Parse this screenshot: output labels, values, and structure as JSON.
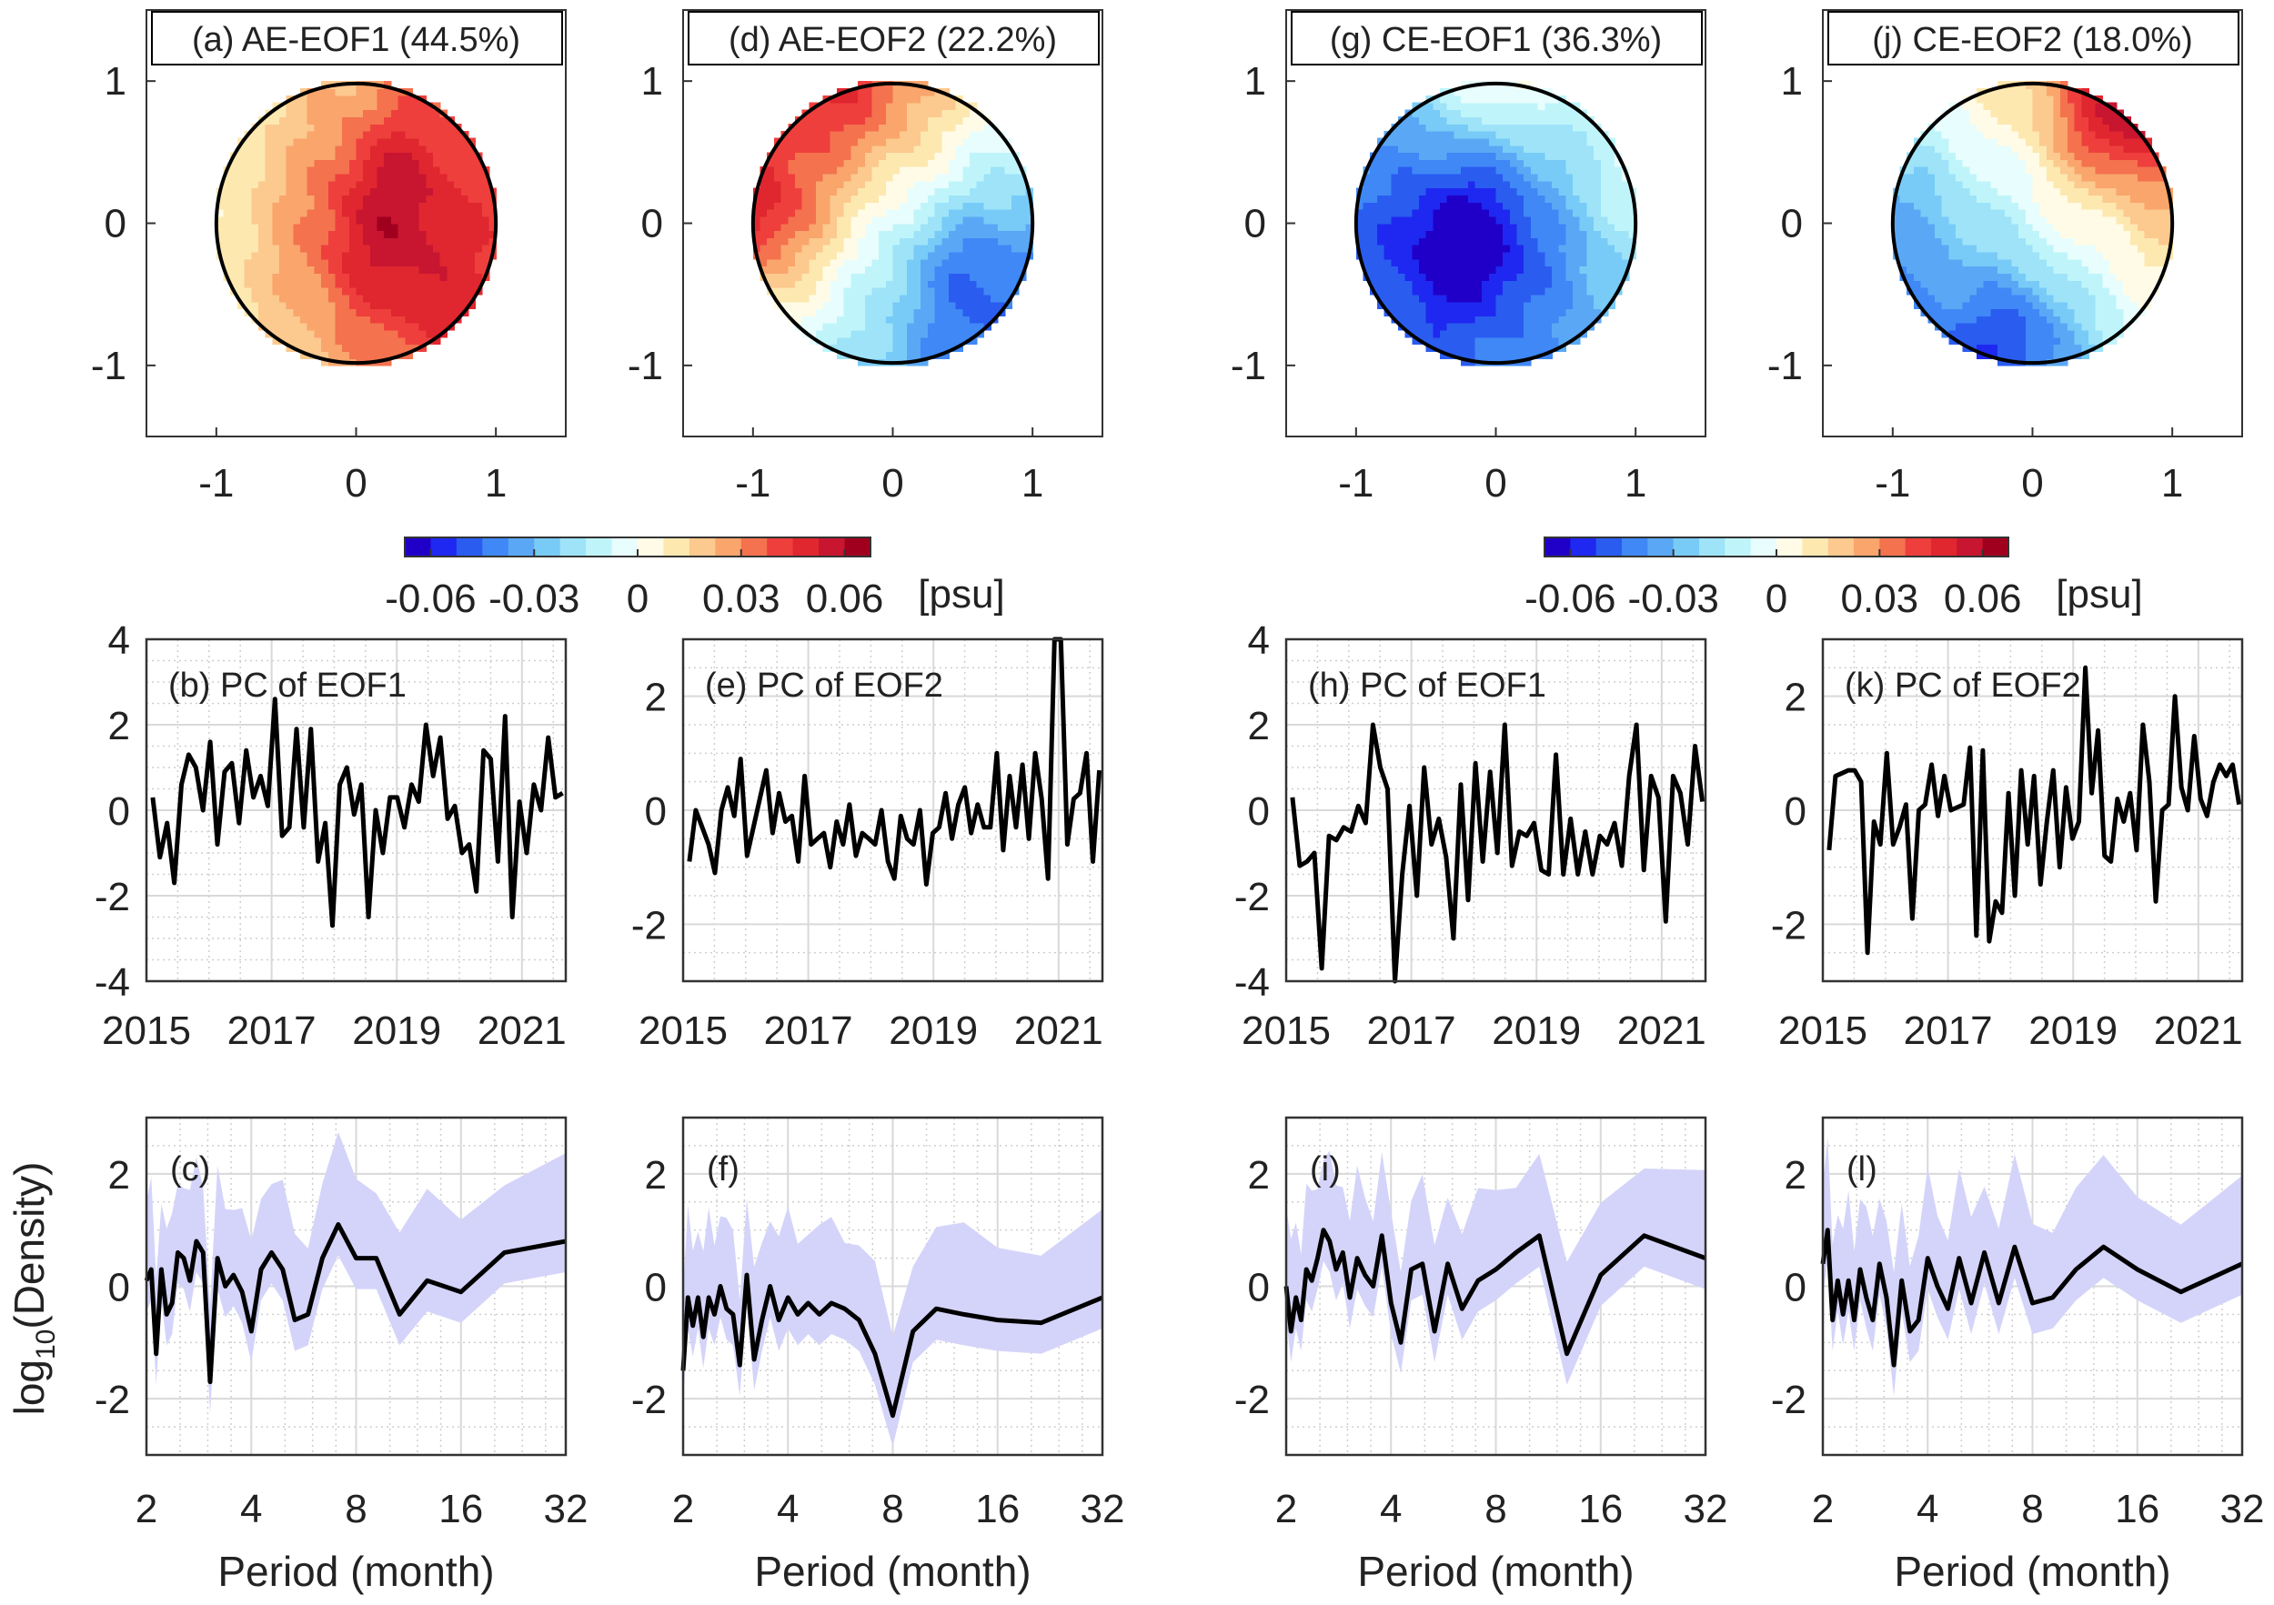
{
  "chart_data": {
    "type": "multi-panel",
    "maps": [
      {
        "title": "(a) AE-EOF1 (44.5%)",
        "xlim": [
          -1.5,
          1.5
        ],
        "ylim": [
          -1.5,
          1.5
        ],
        "xticks": [
          "-1",
          "0",
          "1"
        ],
        "yticks": [
          "1",
          "0",
          "-1"
        ],
        "field": {
          "base": 0.022,
          "gx": 0.013,
          "gy": 0.0,
          "blobs": [
            [
              0.2,
              -0.1,
              0.03,
              0.45
            ],
            [
              0.3,
              0.5,
              0.012,
              0.3
            ],
            [
              0.6,
              -0.7,
              0.008,
              0.3
            ]
          ]
        }
      },
      {
        "title": "(d) AE-EOF2 (22.2%)",
        "xlim": [
          -1.5,
          1.5
        ],
        "ylim": [
          -1.5,
          1.5
        ],
        "xticks": [
          "-1",
          "0",
          "1"
        ],
        "yticks": [
          "1",
          "0",
          "-1"
        ],
        "field": {
          "base": 0.0,
          "gx": -0.028,
          "gy": 0.028,
          "blobs": [
            [
              -0.95,
              0.05,
              0.022,
              0.3
            ],
            [
              0.45,
              -0.3,
              -0.02,
              0.35
            ],
            [
              -0.2,
              0.8,
              0.01,
              0.3
            ]
          ]
        }
      },
      {
        "title": "(g) CE-EOF1 (36.3%)",
        "xlim": [
          -1.5,
          1.5
        ],
        "ylim": [
          -1.5,
          1.5
        ],
        "xticks": [
          "-1",
          "0",
          "1"
        ],
        "yticks": [
          "1",
          "0",
          "-1"
        ],
        "field": {
          "base": -0.028,
          "gx": 0.008,
          "gy": 0.01,
          "blobs": [
            [
              -0.2,
              -0.1,
              -0.038,
              0.45
            ],
            [
              0.0,
              1.0,
              0.022,
              0.28
            ],
            [
              0.9,
              0.3,
              0.01,
              0.3
            ]
          ]
        }
      },
      {
        "title": "(j) CE-EOF2 (18.0%)",
        "xlim": [
          -1.5,
          1.5
        ],
        "ylim": [
          -1.5,
          1.5
        ],
        "xticks": [
          "-1",
          "0",
          "1"
        ],
        "yticks": [
          "1",
          "0",
          "-1"
        ],
        "field": {
          "base": -0.006,
          "gx": 0.024,
          "gy": 0.024,
          "blobs": [
            [
              0.6,
              0.7,
              0.03,
              0.3
            ],
            [
              -0.1,
              -0.75,
              -0.022,
              0.3
            ],
            [
              -0.7,
              0.1,
              -0.006,
              0.3
            ]
          ]
        }
      }
    ],
    "colorbars": [
      {
        "ticks": [
          "-0.06",
          "-0.03",
          "0",
          "0.03",
          "0.06"
        ],
        "tick_values": [
          -0.06,
          -0.03,
          0,
          0.03,
          0.06
        ],
        "range": [
          -0.0675,
          0.0675
        ],
        "unit": "[psu]"
      },
      {
        "ticks": [
          "-0.06",
          "-0.03",
          "0",
          "0.03",
          "0.06"
        ],
        "tick_values": [
          -0.06,
          -0.03,
          0,
          0.03,
          0.06
        ],
        "range": [
          -0.0675,
          0.0675
        ],
        "unit": "[psu]"
      }
    ],
    "colormap": [
      "#2000c8",
      "#1e28f0",
      "#2a5cf0",
      "#3f88f6",
      "#5aa8f5",
      "#78cbf7",
      "#9ee3f8",
      "#bff5fa",
      "#e8fdfd",
      "#fffbe6",
      "#fde8b0",
      "#fcc98e",
      "#f9a56c",
      "#f4724e",
      "#ee3f3d",
      "#e0262f",
      "#c81530",
      "#a0001e"
    ],
    "pcs": [
      {
        "label": "(b) PC of EOF1",
        "ylim": [
          -4,
          4
        ],
        "yticks": [
          4,
          2,
          0,
          -2,
          -4
        ],
        "ytick_labels": [
          "4",
          "2",
          "0",
          "-2",
          "-4"
        ],
        "xlim": [
          2015,
          2021.7
        ],
        "xticks": [
          2015,
          2017,
          2019,
          2021
        ],
        "xtick_labels": [
          "2015",
          "2017",
          "2019",
          "2021"
        ],
        "t_start": 2015.1,
        "t_end": 2021.65,
        "values": [
          0.3,
          -1.1,
          -0.3,
          -1.7,
          0.6,
          1.3,
          1.0,
          0.0,
          1.6,
          -0.8,
          0.9,
          1.1,
          -0.3,
          1.4,
          0.3,
          0.8,
          0.1,
          2.6,
          -0.6,
          -0.4,
          1.9,
          -0.4,
          1.9,
          -1.2,
          -0.3,
          -2.7,
          0.6,
          1.0,
          -0.1,
          0.6,
          -2.5,
          0.0,
          -1.0,
          0.3,
          0.3,
          -0.4,
          0.6,
          0.2,
          2.0,
          0.8,
          1.7,
          -0.2,
          0.1,
          -1.0,
          -0.8,
          -1.9,
          1.4,
          1.2,
          -1.2,
          2.2,
          -2.5,
          0.2,
          -1.0,
          0.6,
          0.0,
          1.7,
          0.3,
          0.4
        ]
      },
      {
        "label": "(e) PC of EOF2",
        "ylim": [
          -3,
          3
        ],
        "yticks": [
          2,
          0,
          -2
        ],
        "ytick_labels": [
          "2",
          "0",
          "-2"
        ],
        "xlim": [
          2015,
          2021.7
        ],
        "xticks": [
          2015,
          2017,
          2019,
          2021
        ],
        "xtick_labels": [
          "2015",
          "2017",
          "2019",
          "2021"
        ],
        "t_start": 2015.1,
        "t_end": 2021.65,
        "values": [
          -0.9,
          0.0,
          -0.3,
          -0.6,
          -1.1,
          0.0,
          0.4,
          -0.1,
          0.9,
          -0.8,
          -0.3,
          0.2,
          0.7,
          -0.4,
          0.3,
          -0.2,
          -0.1,
          -0.9,
          0.6,
          -0.6,
          -0.5,
          -0.4,
          -1.0,
          -0.2,
          -0.6,
          0.1,
          -0.8,
          -0.4,
          -0.5,
          -0.6,
          0.0,
          -0.9,
          -1.2,
          -0.1,
          -0.5,
          -0.6,
          0.0,
          -1.3,
          -0.4,
          -0.3,
          0.3,
          -0.5,
          0.1,
          0.4,
          -0.4,
          0.1,
          -0.3,
          -0.3,
          1.0,
          -0.7,
          0.6,
          -0.3,
          0.8,
          -0.5,
          1.0,
          0.2,
          -1.2,
          3.0,
          3.0,
          -0.6,
          0.2,
          0.3,
          1.0,
          -0.9,
          0.7
        ]
      },
      {
        "label": "(h) PC of EOF1",
        "ylim": [
          -4,
          4
        ],
        "yticks": [
          4,
          2,
          0,
          -2,
          -4
        ],
        "ytick_labels": [
          "4",
          "2",
          "0",
          "-2",
          "-4"
        ],
        "xlim": [
          2015,
          2021.7
        ],
        "xticks": [
          2015,
          2017,
          2019,
          2021
        ],
        "xtick_labels": [
          "2015",
          "2017",
          "2019",
          "2021"
        ],
        "t_start": 2015.1,
        "t_end": 2021.65,
        "values": [
          0.3,
          -1.3,
          -1.2,
          -1.0,
          -3.7,
          -0.6,
          -0.7,
          -0.4,
          -0.5,
          0.1,
          -0.3,
          2.0,
          1.0,
          0.5,
          -4.0,
          -1.5,
          0.1,
          -2.0,
          1.0,
          -0.8,
          -0.2,
          -1.1,
          -3.0,
          0.6,
          -2.1,
          1.1,
          -1.2,
          0.9,
          -1.0,
          2.0,
          -1.3,
          -0.5,
          -0.6,
          -0.3,
          -1.4,
          -1.5,
          1.3,
          -1.5,
          -0.2,
          -1.5,
          -0.5,
          -1.5,
          -0.6,
          -0.8,
          -0.3,
          -1.3,
          0.8,
          2.0,
          -1.4,
          0.8,
          0.3,
          -2.6,
          0.8,
          0.4,
          -0.8,
          1.5,
          0.2
        ]
      },
      {
        "label": "(k) PC of EOF2",
        "ylim": [
          -3,
          3
        ],
        "yticks": [
          2,
          0,
          -2
        ],
        "ytick_labels": [
          "2",
          "0",
          "-2"
        ],
        "xlim": [
          2015,
          2021.7
        ],
        "xticks": [
          2015,
          2017,
          2019,
          2021
        ],
        "xtick_labels": [
          "2015",
          "2017",
          "2019",
          "2021"
        ],
        "t_start": 2015.1,
        "t_end": 2021.65,
        "values": [
          -0.7,
          0.6,
          0.65,
          0.7,
          0.7,
          0.5,
          -2.5,
          -0.2,
          -0.6,
          1.0,
          -0.6,
          -0.3,
          0.1,
          -1.9,
          0.0,
          0.1,
          0.8,
          -0.1,
          0.6,
          0.0,
          0.05,
          0.1,
          1.1,
          -2.2,
          1.05,
          -2.3,
          -1.6,
          -1.8,
          0.3,
          -1.5,
          0.7,
          -0.6,
          0.6,
          -1.3,
          -0.2,
          0.7,
          -1.0,
          0.4,
          -0.5,
          -0.2,
          2.5,
          0.3,
          1.4,
          -0.8,
          -0.9,
          0.2,
          -0.2,
          0.3,
          -0.7,
          1.5,
          0.5,
          -1.6,
          0.0,
          0.1,
          2.0,
          0.4,
          0.0,
          1.3,
          0.2,
          -0.1,
          0.5,
          0.8,
          0.6,
          0.8,
          0.1
        ]
      }
    ],
    "spectra": [
      {
        "label": "(c)",
        "values": [
          0.1,
          0.3,
          -1.2,
          0.3,
          -0.5,
          -0.3,
          0.6,
          0.5,
          0.1,
          0.8,
          0.6,
          -1.7,
          0.5,
          0.0,
          0.2,
          -0.1,
          -0.8,
          0.3,
          0.6,
          0.3,
          -0.6,
          -0.5,
          0.5,
          1.1,
          0.5,
          0.5,
          -0.5,
          0.1,
          -0.1,
          0.6,
          0.8
        ]
      },
      {
        "label": "(f)",
        "values": [
          -1.5,
          -0.2,
          -0.7,
          -0.2,
          -0.9,
          -0.2,
          -0.5,
          0.0,
          -0.4,
          -0.5,
          -1.4,
          0.2,
          -1.3,
          -0.6,
          0.0,
          -0.6,
          -0.2,
          -0.5,
          -0.3,
          -0.5,
          -0.3,
          -0.4,
          -0.6,
          -1.2,
          -2.3,
          -0.8,
          -0.4,
          -0.5,
          -0.6,
          -0.65,
          -0.2
        ]
      },
      {
        "label": "(i)",
        "values": [
          0.0,
          -0.8,
          -0.2,
          -0.6,
          0.3,
          0.1,
          0.5,
          1.0,
          0.8,
          0.3,
          0.6,
          -0.2,
          0.5,
          0.2,
          0.0,
          0.9,
          -0.3,
          -1.0,
          0.3,
          0.4,
          -0.8,
          0.4,
          -0.4,
          0.1,
          0.3,
          0.6,
          0.9,
          -1.2,
          0.2,
          0.9,
          0.5
        ]
      },
      {
        "label": "(l)",
        "values": [
          0.4,
          1.0,
          -0.6,
          0.1,
          -0.5,
          0.1,
          -0.6,
          0.3,
          -0.2,
          -0.6,
          0.4,
          -0.2,
          -1.4,
          0.1,
          -0.8,
          -0.6,
          0.5,
          0.0,
          -0.4,
          0.5,
          -0.3,
          0.6,
          -0.3,
          0.7,
          -0.3,
          -0.2,
          0.3,
          0.7,
          0.3,
          -0.1,
          0.4
        ]
      }
    ],
    "spectrum_axes": {
      "xlim": [
        2,
        32
      ],
      "xscale": "log2",
      "xticks": [
        2,
        4,
        8,
        16,
        32
      ],
      "xtick_labels": [
        "2",
        "4",
        "8",
        "16",
        "32"
      ],
      "ylim": [
        -3,
        3
      ],
      "yticks": [
        2,
        0,
        -2
      ],
      "ytick_labels": [
        "2",
        "0",
        "-2"
      ],
      "period_min": 2,
      "period_max": 32,
      "ci_below_log10": 0.55,
      "ci_above_log10": 1.4
    },
    "xlabel_spectrum": "Period (month)",
    "ylabel_spectrum": {
      "prefix": "log",
      "sub": "10",
      "suffix": "(Density)"
    },
    "colors": {
      "line": "#000000",
      "band": "#d4d4fa",
      "grid_major": "#d9d9d9",
      "grid_minor": "#cfcfcf"
    }
  }
}
